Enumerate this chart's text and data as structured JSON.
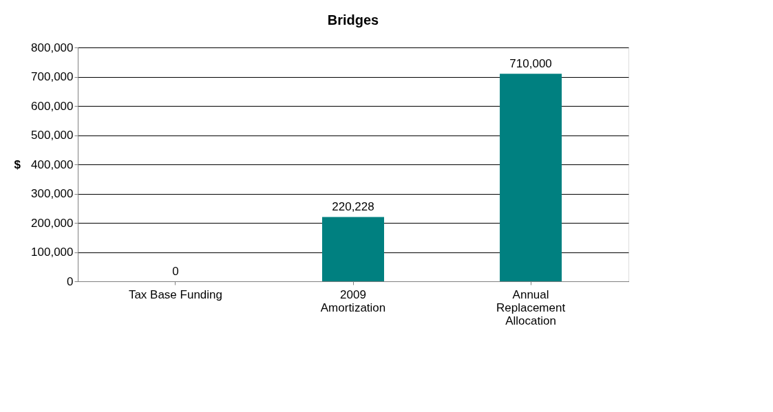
{
  "chart_data": {
    "type": "bar",
    "title": "Bridges",
    "ylabel": "$",
    "categories": [
      "Tax Base Funding",
      "2009\nAmortization",
      "Annual\nReplacement\nAllocation"
    ],
    "values": [
      0,
      220228,
      710000
    ],
    "color": "#008080",
    "value_labels": [
      "0",
      "220,228",
      "710,000"
    ],
    "ylim": [
      0,
      800000
    ],
    "yticks": [
      {
        "value": 0,
        "label": "0"
      },
      {
        "value": 100000,
        "label": "100,000"
      },
      {
        "value": 200000,
        "label": "200,000"
      },
      {
        "value": 300000,
        "label": "300,000"
      },
      {
        "value": 400000,
        "label": "400,000"
      },
      {
        "value": 500000,
        "label": "500,000"
      },
      {
        "value": 600000,
        "label": "600,000"
      },
      {
        "value": 700000,
        "label": "700,000"
      },
      {
        "value": 800000,
        "label": "800,000"
      }
    ],
    "grid": "y"
  }
}
